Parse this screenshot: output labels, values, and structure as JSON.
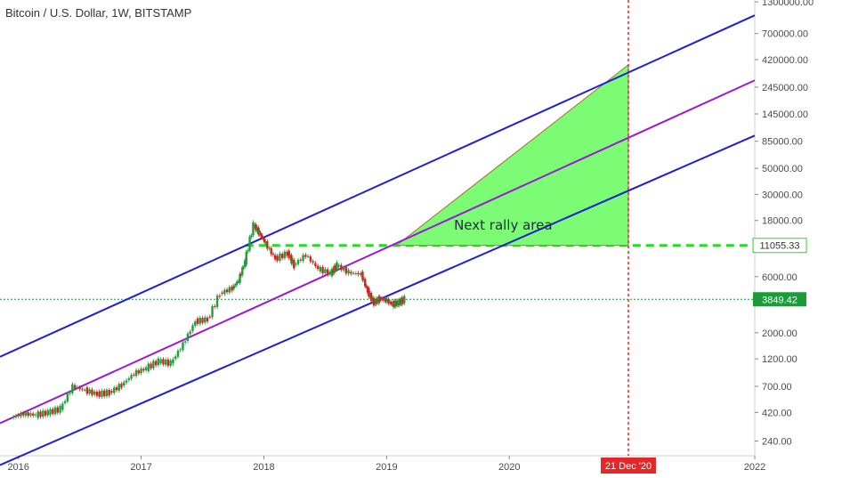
{
  "chart_data": {
    "type": "candlestick",
    "title": "Bitcoin / U.S. Dollar, 1W, BITSTAMP",
    "y_scale": "log",
    "ylim": [
      180,
      1350000
    ],
    "xlim": [
      2015.85,
      2022.0
    ],
    "y_ticks": [
      "1300000.00",
      "700000.00",
      "420000.00",
      "245000.00",
      "145000.00",
      "85000.00",
      "50000.00",
      "30000.00",
      "18000.00",
      "6000.00",
      "2000.00",
      "1200.00",
      "700.00",
      "420.00",
      "240.00"
    ],
    "y_tick_values": [
      1300000,
      700000,
      420000,
      245000,
      145000,
      85000,
      50000,
      30000,
      18000,
      6000,
      2000,
      1200,
      700,
      420,
      240
    ],
    "x_ticks": [
      "2016",
      "2017",
      "2018",
      "2019",
      "2020",
      "2022"
    ],
    "x_tick_values": [
      2016,
      2017,
      2018,
      2019,
      2020,
      2022
    ],
    "x_marker_label": "21 Dec '20",
    "x_marker_value": 2020.97,
    "price_levels": [
      {
        "label": "11055.33",
        "value": 11055.33,
        "color": "#22dd22"
      },
      {
        "label": "3849.42",
        "value": 3849.42,
        "color": "#1a9c3a"
      }
    ],
    "annotation": "Next rally area",
    "rally_triangle": [
      [
        2019.08,
        11055.33
      ],
      [
        2020.97,
        380000
      ],
      [
        2020.97,
        11055.33
      ]
    ],
    "channels": [
      {
        "name": "upper",
        "color": "#1f1fd6",
        "points": [
          [
            2015.85,
            1250
          ],
          [
            2022.0,
            1000000
          ]
        ]
      },
      {
        "name": "middle",
        "color": "#9b19d6",
        "points": [
          [
            2015.85,
            340
          ],
          [
            2022.0,
            280000
          ]
        ]
      },
      {
        "name": "lower",
        "color": "#1f1fd6",
        "points": [
          [
            2015.85,
            150
          ],
          [
            2022.0,
            95000
          ]
        ]
      }
    ],
    "series_points": [
      [
        2015.95,
        380
      ],
      [
        2016.05,
        410
      ],
      [
        2016.15,
        400
      ],
      [
        2016.25,
        420
      ],
      [
        2016.35,
        450
      ],
      [
        2016.45,
        700
      ],
      [
        2016.55,
        650
      ],
      [
        2016.65,
        600
      ],
      [
        2016.75,
        620
      ],
      [
        2016.85,
        720
      ],
      [
        2016.95,
        900
      ],
      [
        2017.05,
        1000
      ],
      [
        2017.15,
        1150
      ],
      [
        2017.25,
        1100
      ],
      [
        2017.35,
        1600
      ],
      [
        2017.45,
        2500
      ],
      [
        2017.55,
        2600
      ],
      [
        2017.65,
        4300
      ],
      [
        2017.75,
        4800
      ],
      [
        2017.8,
        5600
      ],
      [
        2017.85,
        8000
      ],
      [
        2017.92,
        16500
      ],
      [
        2017.97,
        14000
      ],
      [
        2018.02,
        11500
      ],
      [
        2018.1,
        8500
      ],
      [
        2018.2,
        9500
      ],
      [
        2018.25,
        7500
      ],
      [
        2018.35,
        9200
      ],
      [
        2018.45,
        7000
      ],
      [
        2018.55,
        6400
      ],
      [
        2018.6,
        7500
      ],
      [
        2018.7,
        6500
      ],
      [
        2018.8,
        6300
      ],
      [
        2018.85,
        4500
      ],
      [
        2018.9,
        3600
      ],
      [
        2018.95,
        3900
      ],
      [
        2019.0,
        3800
      ],
      [
        2019.05,
        3500
      ],
      [
        2019.1,
        3600
      ],
      [
        2019.15,
        3849
      ]
    ]
  }
}
